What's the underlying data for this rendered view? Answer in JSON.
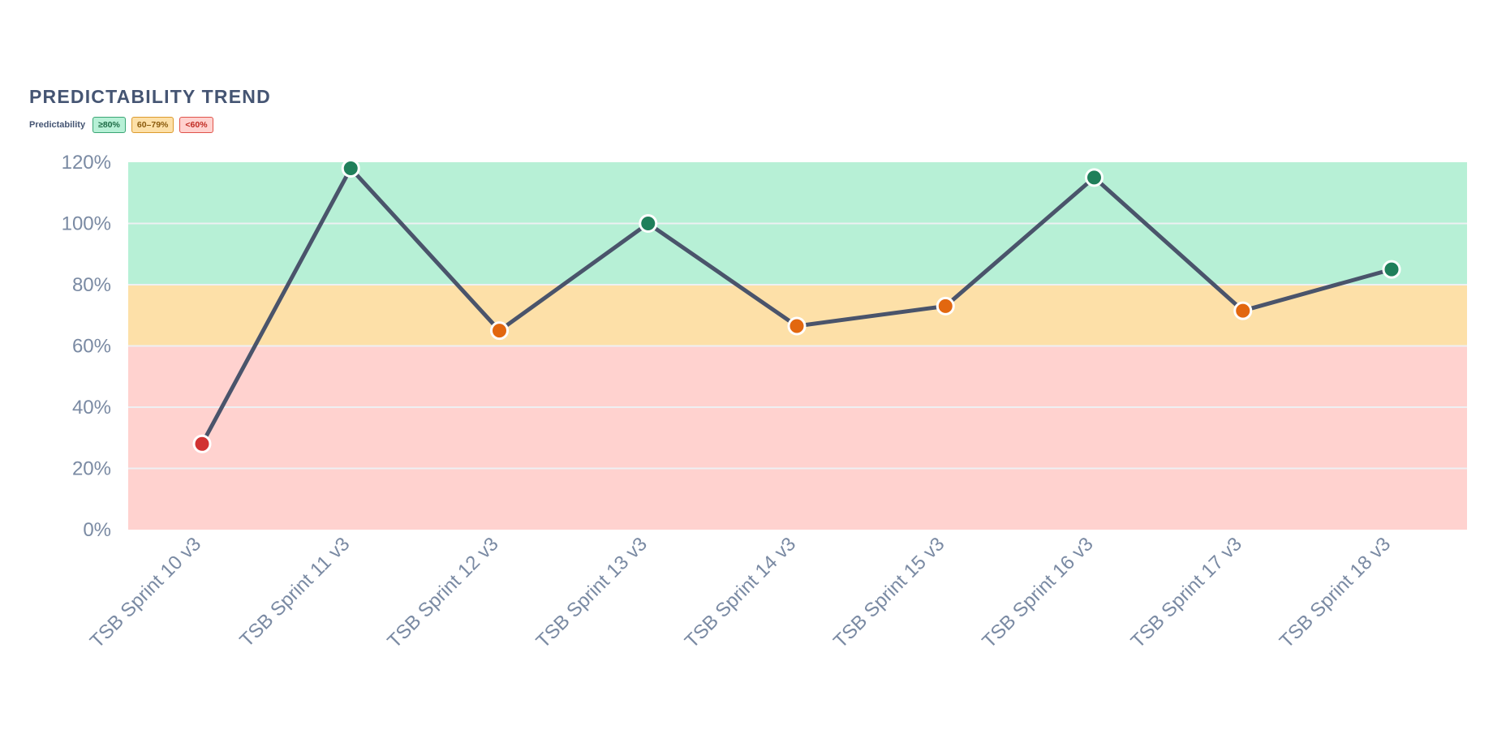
{
  "header": {
    "title": "PREDICTABILITY TREND"
  },
  "legend": {
    "label": "Predictability",
    "bands": [
      {
        "label": "≥80%",
        "min": 80,
        "max": 120
      },
      {
        "label": "60–79%",
        "min": 60,
        "max": 80
      },
      {
        "label": "<60%",
        "min": 0,
        "max": 60
      }
    ]
  },
  "colors": {
    "line": "#4a546b",
    "band_green": "#b7f0d6",
    "band_amber": "#fde0a8",
    "band_red": "#ffd2cf",
    "point_green": "#1f7f5a",
    "point_amber": "#e2670f",
    "point_red": "#d13232",
    "grid": "#eef0f3"
  },
  "chart_data": {
    "type": "line",
    "title": "PREDICTABILITY TREND",
    "xlabel": "",
    "ylabel": "",
    "ylim": [
      0,
      120
    ],
    "yticks": [
      "0%",
      "20%",
      "40%",
      "60%",
      "80%",
      "100%",
      "120%"
    ],
    "grid": true,
    "categories": [
      "TSB Sprint 10 v3",
      "TSB Sprint 11 v3",
      "TSB Sprint 12 v3",
      "TSB Sprint 13 v3",
      "TSB Sprint 14 v3",
      "TSB Sprint 15 v3",
      "TSB Sprint 16 v3",
      "TSB Sprint 17 v3",
      "TSB Sprint 18 v3"
    ],
    "series": [
      {
        "values": [
          28,
          118,
          65,
          100,
          66.5,
          73,
          115,
          71.5,
          85
        ]
      }
    ]
  }
}
